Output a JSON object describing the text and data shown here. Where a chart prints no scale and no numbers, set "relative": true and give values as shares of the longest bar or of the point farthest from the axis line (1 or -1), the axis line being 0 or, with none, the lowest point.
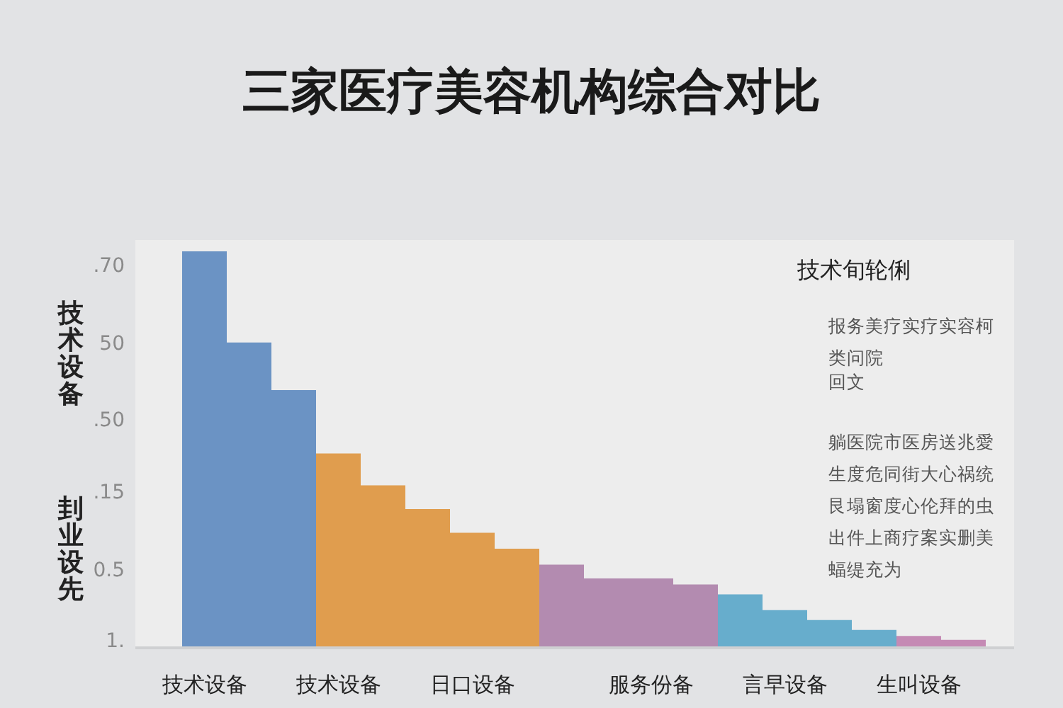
{
  "chart_data": {
    "type": "bar",
    "title": "三家医疗美容机构综合对比",
    "ylabel": "技术设备",
    "relative": true,
    "categories": [
      "技术设备",
      null,
      null,
      "技术设备",
      null,
      null,
      "日口设备",
      null,
      null,
      null,
      "服务份备",
      null,
      null,
      "言早设备",
      null,
      null,
      "生叫设备",
      null
    ],
    "values": [
      1,
      0.77,
      0.65,
      0.49,
      0.41,
      0.35,
      0.29,
      0.25,
      0.21,
      0.175,
      0.175,
      0.16,
      0.135,
      0.095,
      0.07,
      0.045,
      0.03,
      0.02
    ],
    "colors": [
      "#6b93c4",
      "#6b93c4",
      "#6b93c4",
      "#e09d4e",
      "#e09d4e",
      "#e09d4e",
      "#e09d4e",
      "#e09d4e",
      "#b38bb0",
      "#b38bb0",
      "#b38bb0",
      "#b38bb0",
      "#67adcc",
      "#67adcc",
      "#67adcc",
      "#67adcc",
      "#c58ab4",
      "#c58ab4"
    ],
    "annotations": [
      ".70",
      "50",
      ".50",
      ".15",
      "0.5",
      "1.",
      "刲业设先",
      "技术旬轮俐",
      "报务美疗实疗实容柯类问院",
      "回文",
      "躺医院市医房送兆愛生度危同街大心祸统艮塌窗度心伦拜的虫出件上商疗案实删美蝠缇充为"
    ]
  }
}
